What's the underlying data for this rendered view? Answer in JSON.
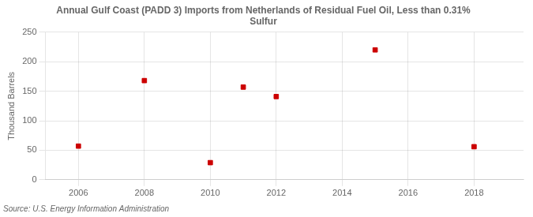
{
  "chart_data": {
    "type": "scatter",
    "title": "Annual Gulf Coast (PADD 3) Imports from Netherlands of Residual Fuel Oil, Less than 0.31%\nSulfur",
    "ylabel": "Thousand Barrels",
    "annotations": [
      "Source: U.S. Energy Information Administration"
    ],
    "x": [
      2006,
      2008,
      2010,
      2011,
      2012,
      2015,
      2018
    ],
    "values": [
      57,
      168,
      29,
      157,
      141,
      220,
      56
    ],
    "color": "#cc0000",
    "marker": "square",
    "xlim": [
      2005.0,
      2019.5
    ],
    "xticks": [
      2006,
      2008,
      2010,
      2012,
      2014,
      2016,
      2018
    ],
    "ylim": [
      0,
      250
    ],
    "yticks": [
      0,
      50,
      100,
      150,
      200,
      250
    ],
    "grid": true
  }
}
